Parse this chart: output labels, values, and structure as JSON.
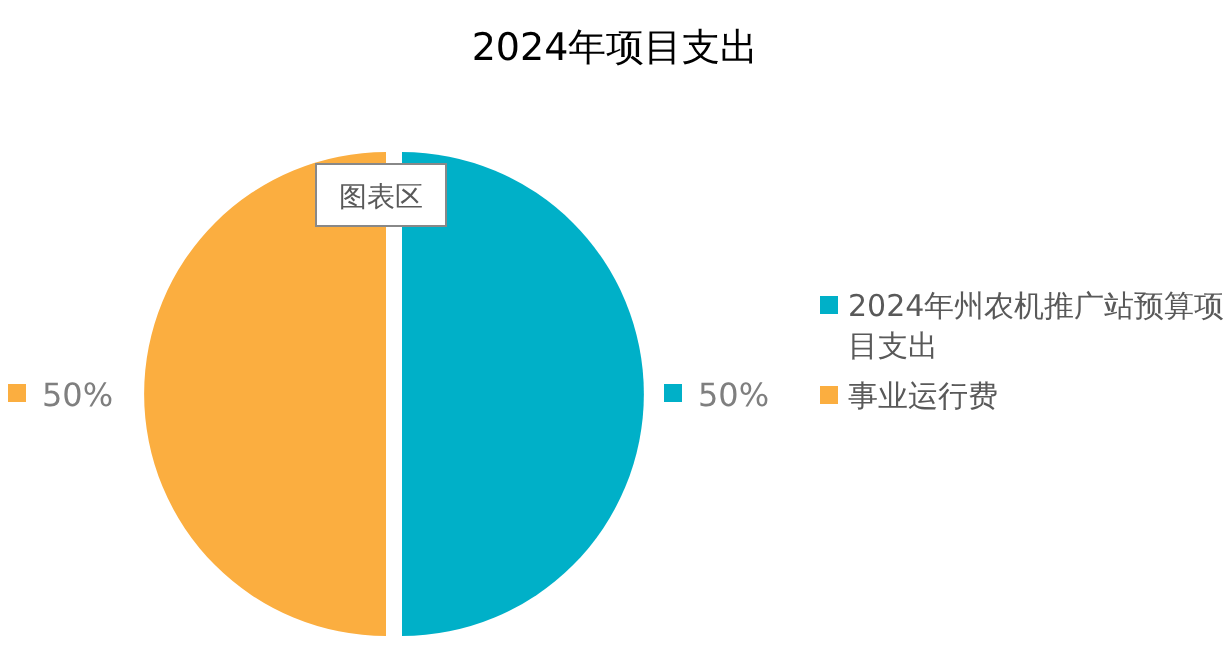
{
  "chart_data": {
    "type": "pie",
    "title": "2024年项目支出",
    "categories": [
      "2024年州农机推广站预算项目支出",
      "事业运行费"
    ],
    "values": [
      50,
      50
    ],
    "colors": [
      "#00b0c8",
      "#fbae40"
    ],
    "value_labels": [
      "50%",
      "50%"
    ],
    "legend": "right",
    "annotations": [
      "图表区"
    ]
  }
}
